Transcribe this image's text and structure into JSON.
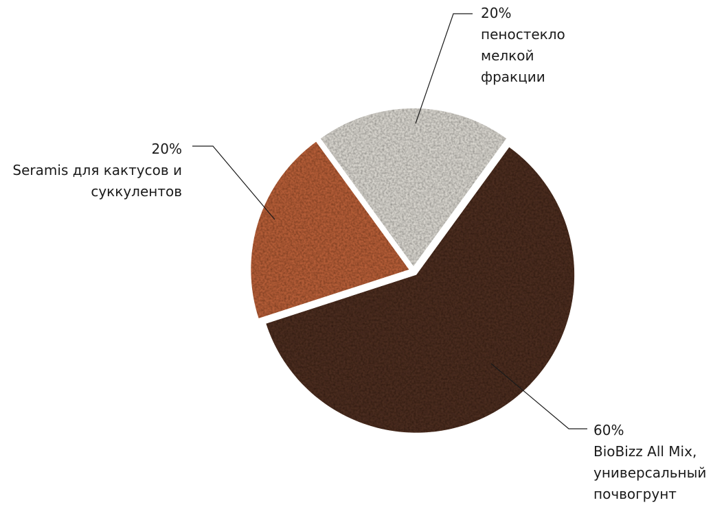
{
  "chart_data": {
    "type": "pie",
    "categories": [
      "пеностекло мелкой фракции",
      "BioBizz All Mix, универсальный почвогрунт",
      "Seramis для кактусов и суккулентов"
    ],
    "values": [
      20,
      60,
      20
    ],
    "value_labels": [
      "20%",
      "60%",
      "20%"
    ],
    "colors": [
      "#d6d3cc",
      "#4b2f22",
      "#b45d37"
    ],
    "start_angle": -36
  }
}
